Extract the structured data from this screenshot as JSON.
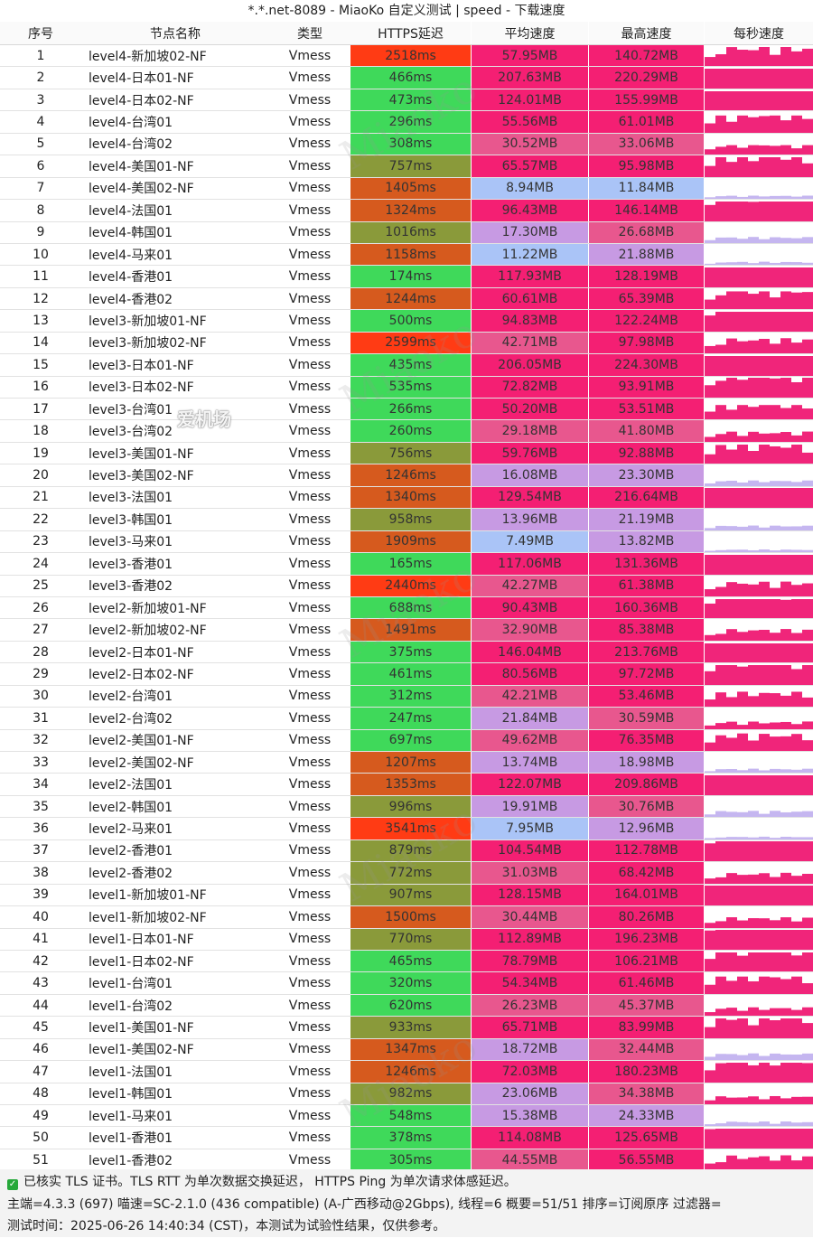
{
  "title": "*.*.net-8089 - MiaoKo 自定义测试 | speed - 下载速度",
  "headers": [
    "序号",
    "节点名称",
    "类型",
    "HTTPS延迟",
    "平均速度",
    "最高速度",
    "每秒速度"
  ],
  "watermark": "Miaoko",
  "brand": "爱机场",
  "rows": [
    {
      "idx": "1",
      "name": "level4-新加坡02-NF",
      "type": "Vmess",
      "lat": "2518ms",
      "avg": "57.95MB",
      "max": "140.72MB"
    },
    {
      "idx": "2",
      "name": "level4-日本01-NF",
      "type": "Vmess",
      "lat": "466ms",
      "avg": "207.63MB",
      "max": "220.29MB"
    },
    {
      "idx": "3",
      "name": "level4-日本02-NF",
      "type": "Vmess",
      "lat": "473ms",
      "avg": "124.01MB",
      "max": "155.99MB"
    },
    {
      "idx": "4",
      "name": "level4-台湾01",
      "type": "Vmess",
      "lat": "296ms",
      "avg": "55.56MB",
      "max": "61.01MB"
    },
    {
      "idx": "5",
      "name": "level4-台湾02",
      "type": "Vmess",
      "lat": "308ms",
      "avg": "30.52MB",
      "max": "33.06MB"
    },
    {
      "idx": "6",
      "name": "level4-美国01-NF",
      "type": "Vmess",
      "lat": "757ms",
      "avg": "65.57MB",
      "max": "95.98MB"
    },
    {
      "idx": "7",
      "name": "level4-美国02-NF",
      "type": "Vmess",
      "lat": "1405ms",
      "avg": "8.94MB",
      "max": "11.84MB"
    },
    {
      "idx": "8",
      "name": "level4-法国01",
      "type": "Vmess",
      "lat": "1324ms",
      "avg": "96.43MB",
      "max": "146.14MB"
    },
    {
      "idx": "9",
      "name": "level4-韩国01",
      "type": "Vmess",
      "lat": "1016ms",
      "avg": "17.30MB",
      "max": "26.68MB"
    },
    {
      "idx": "10",
      "name": "level4-马来01",
      "type": "Vmess",
      "lat": "1158ms",
      "avg": "11.22MB",
      "max": "21.88MB"
    },
    {
      "idx": "11",
      "name": "level4-香港01",
      "type": "Vmess",
      "lat": "174ms",
      "avg": "117.93MB",
      "max": "128.19MB"
    },
    {
      "idx": "12",
      "name": "level4-香港02",
      "type": "Vmess",
      "lat": "1244ms",
      "avg": "60.61MB",
      "max": "65.39MB"
    },
    {
      "idx": "13",
      "name": "level3-新加坡01-NF",
      "type": "Vmess",
      "lat": "500ms",
      "avg": "94.83MB",
      "max": "122.24MB"
    },
    {
      "idx": "14",
      "name": "level3-新加坡02-NF",
      "type": "Vmess",
      "lat": "2599ms",
      "avg": "42.71MB",
      "max": "97.98MB"
    },
    {
      "idx": "15",
      "name": "level3-日本01-NF",
      "type": "Vmess",
      "lat": "435ms",
      "avg": "206.05MB",
      "max": "224.30MB"
    },
    {
      "idx": "16",
      "name": "level3-日本02-NF",
      "type": "Vmess",
      "lat": "535ms",
      "avg": "72.82MB",
      "max": "93.91MB"
    },
    {
      "idx": "17",
      "name": "level3-台湾01",
      "type": "Vmess",
      "lat": "266ms",
      "avg": "50.20MB",
      "max": "53.51MB"
    },
    {
      "idx": "18",
      "name": "level3-台湾02",
      "type": "Vmess",
      "lat": "260ms",
      "avg": "29.18MB",
      "max": "41.80MB"
    },
    {
      "idx": "19",
      "name": "level3-美国01-NF",
      "type": "Vmess",
      "lat": "756ms",
      "avg": "59.76MB",
      "max": "92.88MB"
    },
    {
      "idx": "20",
      "name": "level3-美国02-NF",
      "type": "Vmess",
      "lat": "1246ms",
      "avg": "16.08MB",
      "max": "23.30MB"
    },
    {
      "idx": "21",
      "name": "level3-法国01",
      "type": "Vmess",
      "lat": "1340ms",
      "avg": "129.54MB",
      "max": "216.64MB"
    },
    {
      "idx": "22",
      "name": "level3-韩国01",
      "type": "Vmess",
      "lat": "958ms",
      "avg": "13.96MB",
      "max": "21.19MB"
    },
    {
      "idx": "23",
      "name": "level3-马来01",
      "type": "Vmess",
      "lat": "1909ms",
      "avg": "7.49MB",
      "max": "13.82MB"
    },
    {
      "idx": "24",
      "name": "level3-香港01",
      "type": "Vmess",
      "lat": "165ms",
      "avg": "117.06MB",
      "max": "131.36MB"
    },
    {
      "idx": "25",
      "name": "level3-香港02",
      "type": "Vmess",
      "lat": "2440ms",
      "avg": "42.27MB",
      "max": "61.38MB"
    },
    {
      "idx": "26",
      "name": "level2-新加坡01-NF",
      "type": "Vmess",
      "lat": "688ms",
      "avg": "90.43MB",
      "max": "160.36MB"
    },
    {
      "idx": "27",
      "name": "level2-新加坡02-NF",
      "type": "Vmess",
      "lat": "1491ms",
      "avg": "32.90MB",
      "max": "85.38MB"
    },
    {
      "idx": "28",
      "name": "level2-日本01-NF",
      "type": "Vmess",
      "lat": "375ms",
      "avg": "146.04MB",
      "max": "213.76MB"
    },
    {
      "idx": "29",
      "name": "level2-日本02-NF",
      "type": "Vmess",
      "lat": "461ms",
      "avg": "80.56MB",
      "max": "97.72MB"
    },
    {
      "idx": "30",
      "name": "level2-台湾01",
      "type": "Vmess",
      "lat": "312ms",
      "avg": "42.21MB",
      "max": "53.46MB"
    },
    {
      "idx": "31",
      "name": "level2-台湾02",
      "type": "Vmess",
      "lat": "247ms",
      "avg": "21.84MB",
      "max": "30.59MB"
    },
    {
      "idx": "32",
      "name": "level2-美国01-NF",
      "type": "Vmess",
      "lat": "697ms",
      "avg": "49.62MB",
      "max": "76.35MB"
    },
    {
      "idx": "33",
      "name": "level2-美国02-NF",
      "type": "Vmess",
      "lat": "1207ms",
      "avg": "13.74MB",
      "max": "18.98MB"
    },
    {
      "idx": "34",
      "name": "level2-法国01",
      "type": "Vmess",
      "lat": "1353ms",
      "avg": "122.07MB",
      "max": "209.86MB"
    },
    {
      "idx": "35",
      "name": "level2-韩国01",
      "type": "Vmess",
      "lat": "996ms",
      "avg": "19.91MB",
      "max": "30.76MB"
    },
    {
      "idx": "36",
      "name": "level2-马来01",
      "type": "Vmess",
      "lat": "3541ms",
      "avg": "7.95MB",
      "max": "12.96MB"
    },
    {
      "idx": "37",
      "name": "level2-香港01",
      "type": "Vmess",
      "lat": "879ms",
      "avg": "104.54MB",
      "max": "112.78MB"
    },
    {
      "idx": "38",
      "name": "level2-香港02",
      "type": "Vmess",
      "lat": "772ms",
      "avg": "31.03MB",
      "max": "68.42MB"
    },
    {
      "idx": "39",
      "name": "level1-新加坡01-NF",
      "type": "Vmess",
      "lat": "907ms",
      "avg": "128.15MB",
      "max": "164.01MB"
    },
    {
      "idx": "40",
      "name": "level1-新加坡02-NF",
      "type": "Vmess",
      "lat": "1500ms",
      "avg": "30.44MB",
      "max": "80.26MB"
    },
    {
      "idx": "41",
      "name": "level1-日本01-NF",
      "type": "Vmess",
      "lat": "770ms",
      "avg": "112.89MB",
      "max": "196.23MB"
    },
    {
      "idx": "42",
      "name": "level1-日本02-NF",
      "type": "Vmess",
      "lat": "465ms",
      "avg": "78.79MB",
      "max": "106.21MB"
    },
    {
      "idx": "43",
      "name": "level1-台湾01",
      "type": "Vmess",
      "lat": "320ms",
      "avg": "54.34MB",
      "max": "61.46MB"
    },
    {
      "idx": "44",
      "name": "level1-台湾02",
      "type": "Vmess",
      "lat": "620ms",
      "avg": "26.23MB",
      "max": "45.37MB"
    },
    {
      "idx": "45",
      "name": "level1-美国01-NF",
      "type": "Vmess",
      "lat": "933ms",
      "avg": "65.71MB",
      "max": "83.99MB"
    },
    {
      "idx": "46",
      "name": "level1-美国02-NF",
      "type": "Vmess",
      "lat": "1347ms",
      "avg": "18.72MB",
      "max": "32.44MB"
    },
    {
      "idx": "47",
      "name": "level1-法国01",
      "type": "Vmess",
      "lat": "1246ms",
      "avg": "72.03MB",
      "max": "180.23MB"
    },
    {
      "idx": "48",
      "name": "level1-韩国01",
      "type": "Vmess",
      "lat": "982ms",
      "avg": "23.06MB",
      "max": "34.38MB"
    },
    {
      "idx": "49",
      "name": "level1-马来01",
      "type": "Vmess",
      "lat": "548ms",
      "avg": "15.38MB",
      "max": "24.33MB"
    },
    {
      "idx": "50",
      "name": "level1-香港01",
      "type": "Vmess",
      "lat": "378ms",
      "avg": "114.08MB",
      "max": "125.65MB"
    },
    {
      "idx": "51",
      "name": "level1-香港02",
      "type": "Vmess",
      "lat": "305ms",
      "avg": "44.55MB",
      "max": "56.55MB"
    }
  ],
  "footer": {
    "line1": "已核实 TLS 证书。TLS RTT 为单次数据交换延迟， HTTPS Ping 为单次请求体感延迟。",
    "line2": "主端=4.3.3 (697) 喵速=SC-2.1.0 (436 compatible) (A-广西移动@2Gbps), 线程=6 概要=51/51 排序=订阅原序 过滤器=",
    "line3": "测试时间：2025-06-26 14:40:34 (CST)，本测试为试验性结果，仅供参考。"
  },
  "colors": {
    "lat_fast": "#3fd95a",
    "lat_mid": "#8a9a3a",
    "lat_slow": "#d65a1e",
    "lat_vslow": "#ff3b14",
    "speed_hi": "#f41f73",
    "speed_mid": "#e8578e",
    "speed_low": "#c79ae3",
    "speed_vlow": "#aac4f7",
    "spark": "#f0257a",
    "spark_low": "#c5b6f0"
  }
}
